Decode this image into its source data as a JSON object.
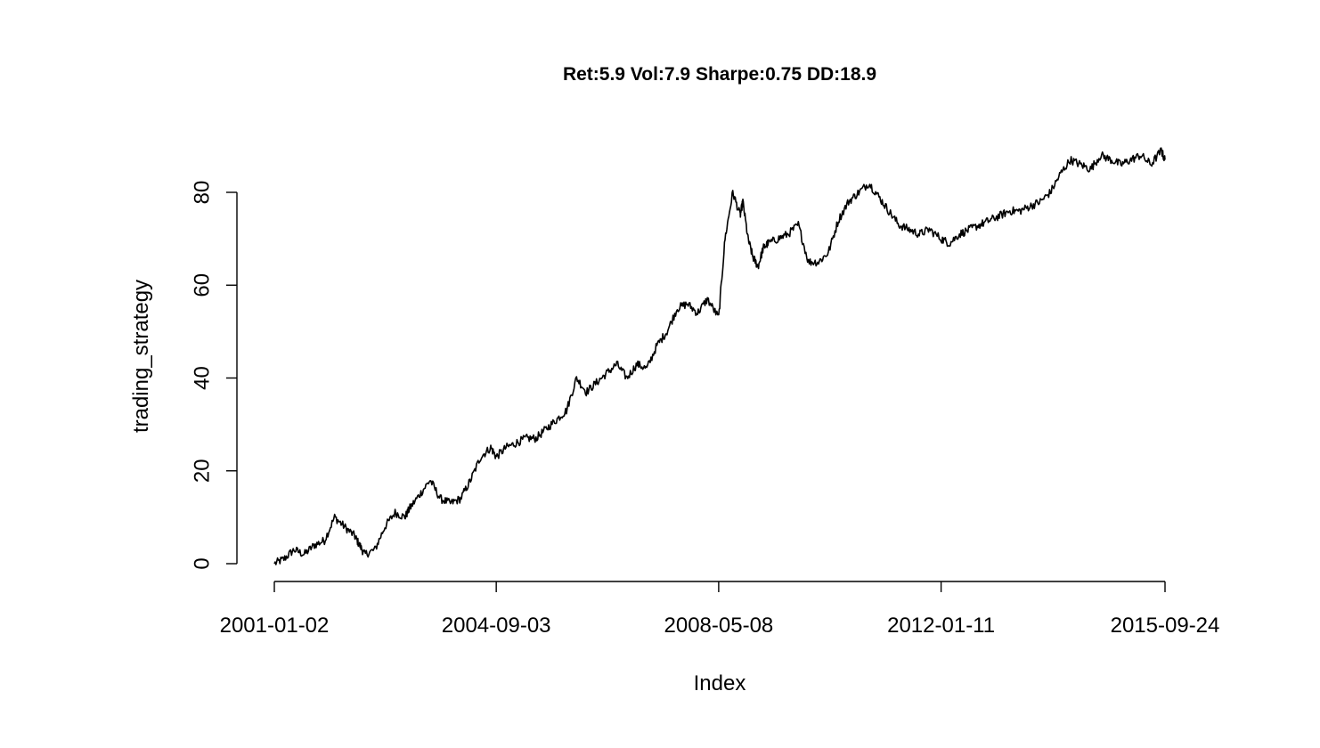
{
  "chart_data": {
    "type": "line",
    "title": "Ret:5.9 Vol:7.9 Sharpe:0.75 DD:18.9",
    "xlabel": "Index",
    "ylabel": "trading_strategy",
    "xlim": [
      "2001-01-02",
      "2015-09-24"
    ],
    "ylim": [
      0,
      90
    ],
    "x_ticks": [
      "2001-01-02",
      "2004-09-03",
      "2008-05-08",
      "2012-01-11",
      "2015-09-24"
    ],
    "y_ticks": [
      0,
      20,
      40,
      60,
      80
    ],
    "grid": false,
    "series": [
      {
        "x": [
          "2001-01-02",
          "2001-03-01",
          "2001-05-01",
          "2001-07-01",
          "2001-09-01",
          "2001-11-01",
          "2002-01-01",
          "2002-03-01",
          "2002-05-01",
          "2002-06-01",
          "2002-07-01",
          "2002-09-01",
          "2002-11-01",
          "2003-01-01",
          "2003-03-01",
          "2003-04-01",
          "2003-06-01",
          "2003-08-01",
          "2003-10-01",
          "2003-12-01",
          "2004-02-01",
          "2004-04-01",
          "2004-06-01",
          "2004-08-01",
          "2004-09-03",
          "2004-11-01",
          "2005-01-01",
          "2005-03-01",
          "2005-05-01",
          "2005-07-01",
          "2005-09-01",
          "2005-11-01",
          "2006-01-01",
          "2006-03-01",
          "2006-05-01",
          "2006-07-01",
          "2006-09-01",
          "2006-11-01",
          "2007-01-01",
          "2007-03-01",
          "2007-05-01",
          "2007-07-01",
          "2007-09-01",
          "2007-11-01",
          "2008-01-01",
          "2008-03-01",
          "2008-05-08",
          "2008-06-15",
          "2008-08-01",
          "2008-09-15",
          "2008-10-01",
          "2008-11-01",
          "2008-12-01",
          "2009-01-01",
          "2009-02-01",
          "2009-03-01",
          "2009-05-01",
          "2009-07-01",
          "2009-09-01",
          "2009-11-01",
          "2010-01-01",
          "2010-03-01",
          "2010-05-01",
          "2010-07-01",
          "2010-09-01",
          "2010-11-01",
          "2011-01-01",
          "2011-03-01",
          "2011-05-01",
          "2011-07-01",
          "2011-09-01",
          "2011-11-01",
          "2012-01-11",
          "2012-03-01",
          "2012-05-01",
          "2012-07-01",
          "2012-09-01",
          "2012-11-01",
          "2013-01-01",
          "2013-03-01",
          "2013-05-01",
          "2013-07-01",
          "2013-09-01",
          "2013-11-01",
          "2014-01-01",
          "2014-03-01",
          "2014-05-01",
          "2014-07-01",
          "2014-09-01",
          "2014-11-01",
          "2015-01-01",
          "2015-03-01",
          "2015-05-01",
          "2015-07-01",
          "2015-09-01",
          "2015-09-24"
        ],
        "values": [
          0,
          1,
          3,
          2,
          4,
          5,
          10,
          8,
          6,
          4,
          2,
          3,
          8,
          11,
          10,
          12,
          15,
          18,
          14,
          13,
          14,
          18,
          23,
          25,
          23,
          25,
          26,
          27,
          27,
          29,
          31,
          33,
          40,
          37,
          39,
          41,
          43,
          40,
          43,
          42,
          47,
          50,
          55,
          56,
          54,
          57,
          53,
          70,
          80,
          75,
          78,
          70,
          66,
          64,
          68,
          69,
          70,
          71,
          73,
          65,
          65,
          67,
          74,
          78,
          80,
          82,
          79,
          76,
          73,
          72,
          71,
          72,
          70,
          69,
          71,
          72,
          73,
          74,
          75,
          76,
          76,
          77,
          78,
          80,
          84,
          87,
          86,
          85,
          88,
          87,
          86,
          87,
          88,
          86,
          89,
          87
        ]
      }
    ]
  }
}
